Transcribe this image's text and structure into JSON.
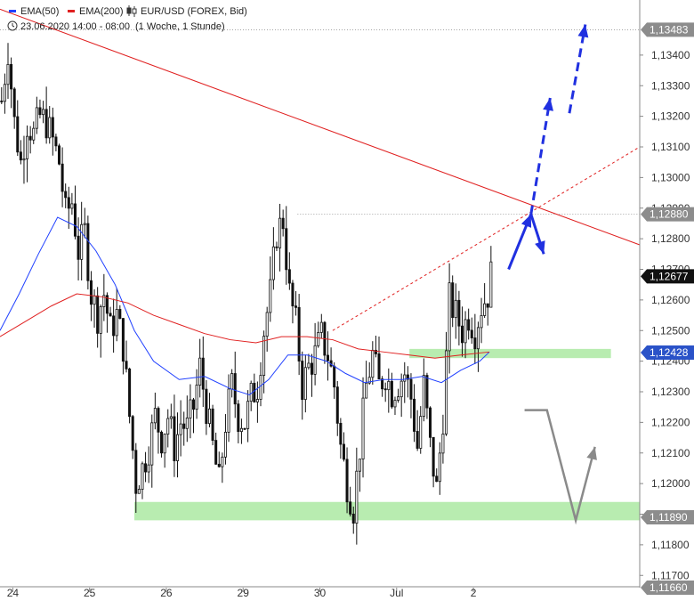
{
  "header": {
    "legend": [
      {
        "label": "EMA(50)",
        "color": "#2040ff"
      },
      {
        "label": "EMA(200)",
        "color": "#e02020"
      }
    ],
    "instrument": "EUR/USD (FOREX, Bid)",
    "date_range": "23.06.2020 14:00 - 08:00",
    "period": "(1 Woche, 1 Stunde)",
    "icons": [
      "candlestick-icon",
      "clock-icon"
    ]
  },
  "price_badges": [
    {
      "value": "1,13483",
      "style": "gray"
    },
    {
      "value": "1,12880",
      "style": "gray"
    },
    {
      "value": "1,12677",
      "style": "black"
    },
    {
      "value": "1,12428",
      "style": "blue"
    },
    {
      "value": "1,11890",
      "style": "gray"
    },
    {
      "value": "1,11660",
      "style": "gray"
    }
  ],
  "chart_data": {
    "type": "candlestick",
    "title": "",
    "x_ticks": [
      {
        "label": "24",
        "bar": 4
      },
      {
        "label": "25",
        "bar": 28
      },
      {
        "label": "26",
        "bar": 52
      },
      {
        "label": "29",
        "bar": 76
      },
      {
        "label": "30",
        "bar": 100
      },
      {
        "label": "Jul",
        "bar": 124
      },
      {
        "label": "2",
        "bar": 148
      }
    ],
    "y_ticks": [
      "1,13400",
      "1,13300",
      "1,13200",
      "1,13100",
      "1,13000",
      "1,12900",
      "1,12800",
      "1,12700",
      "1,12600",
      "1,12500",
      "1,12400",
      "1,12300",
      "1,12200",
      "1,12100",
      "1,12000",
      "1,11900",
      "1,11800",
      "1,11700"
    ],
    "ylim": [
      1.1166,
      1.1358
    ],
    "total_bars": 200,
    "candle_anchors": [
      {
        "bar": 0,
        "close": 1.1325
      },
      {
        "bar": 2,
        "close": 1.1342
      },
      {
        "bar": 4,
        "close": 1.1318
      },
      {
        "bar": 6,
        "close": 1.1305
      },
      {
        "bar": 8,
        "close": 1.1318
      },
      {
        "bar": 10,
        "close": 1.1314
      },
      {
        "bar": 12,
        "close": 1.132
      },
      {
        "bar": 14,
        "close": 1.1318
      },
      {
        "bar": 16,
        "close": 1.1312
      },
      {
        "bar": 18,
        "close": 1.1305
      },
      {
        "bar": 20,
        "close": 1.1288
      },
      {
        "bar": 22,
        "close": 1.1292
      },
      {
        "bar": 24,
        "close": 1.1276
      },
      {
        "bar": 26,
        "close": 1.1282
      },
      {
        "bar": 28,
        "close": 1.1262
      },
      {
        "bar": 30,
        "close": 1.1255
      },
      {
        "bar": 32,
        "close": 1.1262
      },
      {
        "bar": 34,
        "close": 1.125
      },
      {
        "bar": 36,
        "close": 1.1255
      },
      {
        "bar": 38,
        "close": 1.1245
      },
      {
        "bar": 40,
        "close": 1.1222
      },
      {
        "bar": 42,
        "close": 1.12
      },
      {
        "bar": 44,
        "close": 1.1205
      },
      {
        "bar": 46,
        "close": 1.1212
      },
      {
        "bar": 48,
        "close": 1.1222
      },
      {
        "bar": 50,
        "close": 1.1215
      },
      {
        "bar": 52,
        "close": 1.1222
      },
      {
        "bar": 54,
        "close": 1.1212
      },
      {
        "bar": 56,
        "close": 1.122
      },
      {
        "bar": 58,
        "close": 1.1218
      },
      {
        "bar": 60,
        "close": 1.1225
      },
      {
        "bar": 62,
        "close": 1.1238
      },
      {
        "bar": 64,
        "close": 1.1225
      },
      {
        "bar": 66,
        "close": 1.1212
      },
      {
        "bar": 68,
        "close": 1.12
      },
      {
        "bar": 70,
        "close": 1.122
      },
      {
        "bar": 72,
        "close": 1.1232
      },
      {
        "bar": 74,
        "close": 1.1222
      },
      {
        "bar": 76,
        "close": 1.122
      },
      {
        "bar": 78,
        "close": 1.1228
      },
      {
        "bar": 80,
        "close": 1.1232
      },
      {
        "bar": 82,
        "close": 1.125
      },
      {
        "bar": 84,
        "close": 1.1262
      },
      {
        "bar": 86,
        "close": 1.1282
      },
      {
        "bar": 88,
        "close": 1.1286
      },
      {
        "bar": 90,
        "close": 1.1262
      },
      {
        "bar": 92,
        "close": 1.1252
      },
      {
        "bar": 94,
        "close": 1.1232
      },
      {
        "bar": 96,
        "close": 1.1238
      },
      {
        "bar": 98,
        "close": 1.1242
      },
      {
        "bar": 100,
        "close": 1.1248
      },
      {
        "bar": 102,
        "close": 1.1242
      },
      {
        "bar": 104,
        "close": 1.1232
      },
      {
        "bar": 106,
        "close": 1.1212
      },
      {
        "bar": 108,
        "close": 1.12
      },
      {
        "bar": 110,
        "close": 1.1192
      },
      {
        "bar": 112,
        "close": 1.1212
      },
      {
        "bar": 114,
        "close": 1.1232
      },
      {
        "bar": 116,
        "close": 1.1242
      },
      {
        "bar": 118,
        "close": 1.1232
      },
      {
        "bar": 120,
        "close": 1.1236
      },
      {
        "bar": 122,
        "close": 1.123
      },
      {
        "bar": 124,
        "close": 1.1233
      },
      {
        "bar": 126,
        "close": 1.1236
      },
      {
        "bar": 128,
        "close": 1.1228
      },
      {
        "bar": 130,
        "close": 1.1212
      },
      {
        "bar": 132,
        "close": 1.1232
      },
      {
        "bar": 134,
        "close": 1.1212
      },
      {
        "bar": 136,
        "close": 1.1198
      },
      {
        "bar": 138,
        "close": 1.1222
      },
      {
        "bar": 140,
        "close": 1.126
      },
      {
        "bar": 142,
        "close": 1.1255
      },
      {
        "bar": 144,
        "close": 1.125
      },
      {
        "bar": 146,
        "close": 1.1255
      },
      {
        "bar": 148,
        "close": 1.125
      },
      {
        "bar": 150,
        "close": 1.1258
      },
      {
        "bar": 152,
        "close": 1.1262
      },
      {
        "bar": 153,
        "close": 1.1268
      }
    ],
    "last_bar": 153,
    "series": [
      {
        "name": "EMA(50)",
        "color": "#2040ff",
        "points": [
          {
            "bar": 0,
            "y": 1.125
          },
          {
            "bar": 6,
            "y": 1.1262
          },
          {
            "bar": 12,
            "y": 1.1275
          },
          {
            "bar": 18,
            "y": 1.1287
          },
          {
            "bar": 24,
            "y": 1.1284
          },
          {
            "bar": 30,
            "y": 1.1276
          },
          {
            "bar": 36,
            "y": 1.1265
          },
          {
            "bar": 42,
            "y": 1.125
          },
          {
            "bar": 48,
            "y": 1.124
          },
          {
            "bar": 56,
            "y": 1.1234
          },
          {
            "bar": 64,
            "y": 1.1235
          },
          {
            "bar": 72,
            "y": 1.1231
          },
          {
            "bar": 78,
            "y": 1.1229
          },
          {
            "bar": 84,
            "y": 1.1234
          },
          {
            "bar": 90,
            "y": 1.1242
          },
          {
            "bar": 96,
            "y": 1.1242
          },
          {
            "bar": 102,
            "y": 1.124
          },
          {
            "bar": 108,
            "y": 1.1236
          },
          {
            "bar": 114,
            "y": 1.1233
          },
          {
            "bar": 120,
            "y": 1.1234
          },
          {
            "bar": 126,
            "y": 1.1234
          },
          {
            "bar": 132,
            "y": 1.1235
          },
          {
            "bar": 138,
            "y": 1.1233
          },
          {
            "bar": 144,
            "y": 1.1237
          },
          {
            "bar": 150,
            "y": 1.124
          },
          {
            "bar": 153,
            "y": 1.1243
          }
        ]
      },
      {
        "name": "EMA(200)",
        "color": "#e02020",
        "points": [
          {
            "bar": 0,
            "y": 1.1248
          },
          {
            "bar": 8,
            "y": 1.1253
          },
          {
            "bar": 16,
            "y": 1.1258
          },
          {
            "bar": 24,
            "y": 1.1262
          },
          {
            "bar": 32,
            "y": 1.1261
          },
          {
            "bar": 40,
            "y": 1.1259
          },
          {
            "bar": 48,
            "y": 1.1255
          },
          {
            "bar": 56,
            "y": 1.1252
          },
          {
            "bar": 64,
            "y": 1.1249
          },
          {
            "bar": 72,
            "y": 1.1247
          },
          {
            "bar": 80,
            "y": 1.1246
          },
          {
            "bar": 88,
            "y": 1.1248
          },
          {
            "bar": 96,
            "y": 1.1248
          },
          {
            "bar": 104,
            "y": 1.1247
          },
          {
            "bar": 112,
            "y": 1.1244
          },
          {
            "bar": 120,
            "y": 1.1243
          },
          {
            "bar": 128,
            "y": 1.1242
          },
          {
            "bar": 136,
            "y": 1.1241
          },
          {
            "bar": 144,
            "y": 1.1242
          },
          {
            "bar": 153,
            "y": 1.1243
          }
        ]
      }
    ],
    "trendline": {
      "color": "#e02020",
      "from": {
        "bar": 0,
        "y": 1.1355
      },
      "to": {
        "bar": 200,
        "y": 1.1278
      }
    },
    "dotted_trendline": {
      "color": "#e02020",
      "from": {
        "bar": 104,
        "y": 1.125
      },
      "to": {
        "bar": 200,
        "y": 1.131
      }
    },
    "reference_lines": [
      {
        "y": 1.13483,
        "from_bar": 0,
        "to_bar": 200
      },
      {
        "y": 1.1288,
        "from_bar": 93,
        "to_bar": 200
      }
    ],
    "zones": [
      {
        "y_low": 1.1188,
        "y_high": 1.1194,
        "from_bar": 42,
        "to_bar": 200,
        "color": "#b8ecb0"
      },
      {
        "y_low": 1.1241,
        "y_high": 1.1244,
        "from_bar": 128,
        "to_bar": 191,
        "color": "#b8ecb0"
      }
    ],
    "arrows": [
      {
        "color": "#2030e0",
        "dashed": false,
        "points": [
          {
            "bar": 159,
            "y": 1.127
          },
          {
            "bar": 166,
            "y": 1.1288
          }
        ]
      },
      {
        "color": "#2030e0",
        "dashed": false,
        "points": [
          {
            "bar": 166,
            "y": 1.1288
          },
          {
            "bar": 170,
            "y": 1.1275
          }
        ]
      },
      {
        "color": "#2030e0",
        "dashed": true,
        "points": [
          {
            "bar": 166,
            "y": 1.1288
          },
          {
            "bar": 172,
            "y": 1.1326
          }
        ]
      },
      {
        "color": "#2030e0",
        "dashed": true,
        "points": [
          {
            "bar": 178,
            "y": 1.1321
          },
          {
            "bar": 183,
            "y": 1.135
          }
        ]
      },
      {
        "color": "#8a8a8a",
        "dashed": false,
        "points": [
          {
            "bar": 164,
            "y": 1.1224
          },
          {
            "bar": 171,
            "y": 1.1224
          },
          {
            "bar": 180,
            "y": 1.1188
          },
          {
            "bar": 186,
            "y": 1.1212
          }
        ]
      }
    ]
  }
}
